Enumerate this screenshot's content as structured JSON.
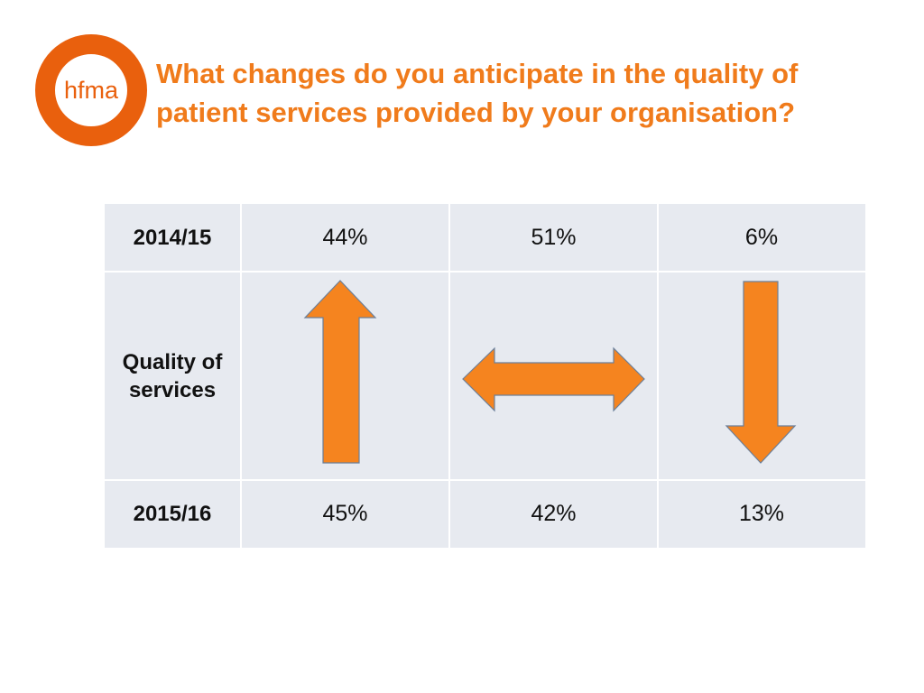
{
  "logo": {
    "text": "hfma",
    "color": "#E9600D"
  },
  "title": {
    "line1": "What changes do you anticipate in the quality of",
    "line2": "patient services provided by your organisation?",
    "color": "#F07B1B"
  },
  "chart_data": {
    "type": "table",
    "row_headers": [
      "2014/15",
      "Quality of services",
      "2015/16"
    ],
    "columns": [
      "increase",
      "no change",
      "decrease"
    ],
    "column_icons": [
      "arrow-up-icon",
      "arrow-left-right-icon",
      "arrow-down-icon"
    ],
    "rows": [
      {
        "label": "2014/15",
        "values": [
          "44%",
          "51%",
          "6%"
        ]
      },
      {
        "label": "2015/16",
        "values": [
          "45%",
          "42%",
          "13%"
        ]
      }
    ],
    "arrow_color": "#F5841F",
    "table_background": "#E7EAF0"
  }
}
